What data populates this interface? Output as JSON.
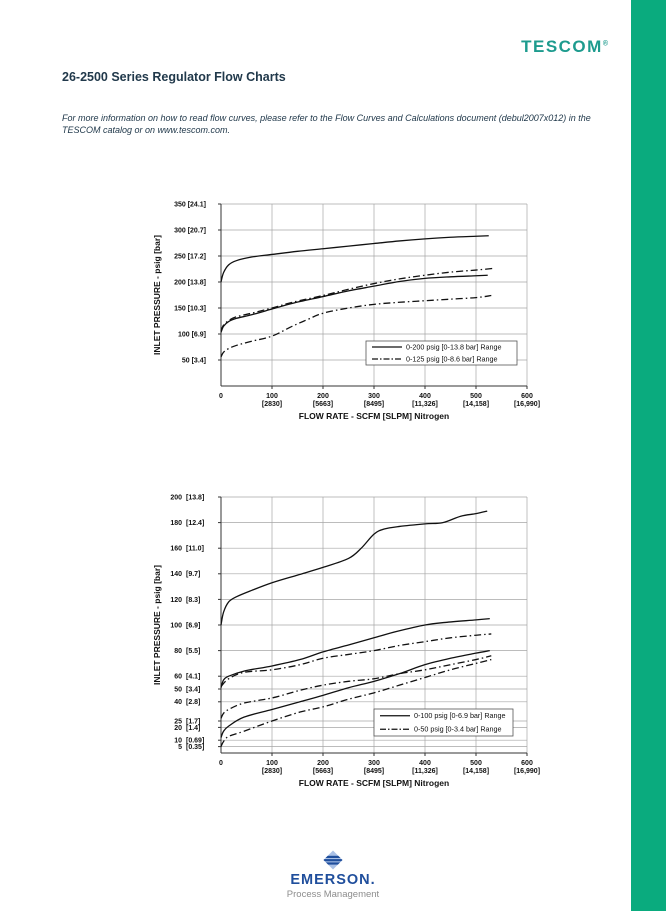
{
  "page": {
    "brand": "TESCOM",
    "brand_mark": "®",
    "title": "26-2500 Series Regulator Flow Charts",
    "note_line1": "For more information on how to read flow curves, please refer to the Flow Curves and Calculations document (debul2007x012) in the",
    "note_line2": "TESCOM catalog or on www.tescom.com.",
    "footer": {
      "brand": "EMERSON.",
      "sub": "Process Management"
    },
    "colors": {
      "accent_bar": "#0aab7e",
      "brand_teal": "#1d9b8e",
      "heading_navy": "#21394b",
      "emerson_blue": "#1f4e9c",
      "emerson_gray": "#8d8d8d",
      "chart_ink": "#111111",
      "grid_gray": "#a6a6a6"
    }
  },
  "chart_data": [
    {
      "type": "line",
      "title": "",
      "xlabel": "FLOW RATE - SCFM [SLPM] Nitrogen",
      "ylabel": "INLET PRESSURE - psig [bar]",
      "x_range": [
        0,
        600
      ],
      "y_range": [
        0,
        350
      ],
      "grid": true,
      "legend_position": "lower-right",
      "x_ticks": [
        {
          "v": 0,
          "l1": "0",
          "l2": ""
        },
        {
          "v": 100,
          "l1": "100",
          "l2": "[2830]"
        },
        {
          "v": 200,
          "l1": "200",
          "l2": "[5663]"
        },
        {
          "v": 300,
          "l1": "300",
          "l2": "[8495]"
        },
        {
          "v": 400,
          "l1": "400",
          "l2": "[11,326]"
        },
        {
          "v": 500,
          "l1": "500",
          "l2": "[14,158]"
        },
        {
          "v": 600,
          "l1": "600",
          "l2": "[16,990]"
        }
      ],
      "y_ticks": [
        {
          "v": 50,
          "psig": "50",
          "bar": "[3.4]"
        },
        {
          "v": 100,
          "psig": "100",
          "bar": "[6.9]"
        },
        {
          "v": 150,
          "psig": "150",
          "bar": "[10.3]"
        },
        {
          "v": 200,
          "psig": "200",
          "bar": "[13.8]"
        },
        {
          "v": 250,
          "psig": "250",
          "bar": "[17.2]"
        },
        {
          "v": 300,
          "psig": "300",
          "bar": "[20.7]"
        },
        {
          "v": 350,
          "psig": "350",
          "bar": "[24.1]"
        }
      ],
      "legend": [
        {
          "style": "solid",
          "label": "0-200 psig [0-13.8 bar] Range"
        },
        {
          "style": "dashdot",
          "label": "0-125 psig [0-8.6 bar] Range"
        }
      ],
      "series": [
        {
          "name": "0-200 psig range, upper curve",
          "style": "solid",
          "points": [
            [
              0,
              200
            ],
            [
              5,
              218
            ],
            [
              15,
              233
            ],
            [
              30,
              241
            ],
            [
              60,
              248
            ],
            [
              100,
              253
            ],
            [
              150,
              259
            ],
            [
              200,
              264
            ],
            [
              250,
              269
            ],
            [
              300,
              274
            ],
            [
              350,
              279
            ],
            [
              400,
              283
            ],
            [
              450,
              286
            ],
            [
              500,
              288
            ],
            [
              525,
              289
            ]
          ]
        },
        {
          "name": "0-200 psig range, lower curve",
          "style": "solid",
          "points": [
            [
              0,
              103
            ],
            [
              5,
              115
            ],
            [
              15,
              124
            ],
            [
              30,
              130
            ],
            [
              60,
              137
            ],
            [
              100,
              148
            ],
            [
              140,
              159
            ],
            [
              200,
              172
            ],
            [
              250,
              183
            ],
            [
              300,
              192
            ],
            [
              350,
              201
            ],
            [
              400,
              207
            ],
            [
              450,
              210
            ],
            [
              500,
              212
            ],
            [
              523,
              213
            ]
          ]
        },
        {
          "name": "0-125 psig range, upper curve",
          "style": "dashdot",
          "points": [
            [
              0,
              106
            ],
            [
              5,
              117
            ],
            [
              15,
              126
            ],
            [
              30,
              133
            ],
            [
              60,
              140
            ],
            [
              100,
              150
            ],
            [
              140,
              161
            ],
            [
              200,
              174
            ],
            [
              250,
              186
            ],
            [
              300,
              197
            ],
            [
              350,
              206
            ],
            [
              400,
              213
            ],
            [
              450,
              219
            ],
            [
              500,
              223
            ],
            [
              533,
              226
            ]
          ]
        },
        {
          "name": "0-125 psig range, lower curve",
          "style": "dashdot",
          "points": [
            [
              0,
              56
            ],
            [
              5,
              65
            ],
            [
              15,
              72
            ],
            [
              30,
              78
            ],
            [
              60,
              86
            ],
            [
              100,
              96
            ],
            [
              140,
              115
            ],
            [
              170,
              128
            ],
            [
              200,
              140
            ],
            [
              250,
              150
            ],
            [
              300,
              157
            ],
            [
              350,
              161
            ],
            [
              400,
              164
            ],
            [
              450,
              167
            ],
            [
              500,
              170
            ],
            [
              530,
              174
            ]
          ]
        }
      ]
    },
    {
      "type": "line",
      "title": "",
      "xlabel": "FLOW RATE - SCFM [SLPM] Nitrogen",
      "ylabel": "INLET PRESSURE - psig [bar]",
      "x_range": [
        0,
        600
      ],
      "y_range": [
        0,
        200
      ],
      "grid": true,
      "legend_position": "lower-right",
      "x_ticks": [
        {
          "v": 0,
          "l1": "0",
          "l2": ""
        },
        {
          "v": 100,
          "l1": "100",
          "l2": "[2830]"
        },
        {
          "v": 200,
          "l1": "200",
          "l2": "[5663]"
        },
        {
          "v": 300,
          "l1": "300",
          "l2": "[8495]"
        },
        {
          "v": 400,
          "l1": "400",
          "l2": "[11,326]"
        },
        {
          "v": 500,
          "l1": "500",
          "l2": "[14,158]"
        },
        {
          "v": 600,
          "l1": "600",
          "l2": "[16,990]"
        }
      ],
      "y_ticks": [
        {
          "v": 5,
          "psig": "5",
          "bar": "[0.35]"
        },
        {
          "v": 10,
          "psig": "10",
          "bar": "[0.69]"
        },
        {
          "v": 20,
          "psig": "20",
          "bar": "[1.4]"
        },
        {
          "v": 25,
          "psig": "25",
          "bar": "[1.7]"
        },
        {
          "v": 40,
          "psig": "40",
          "bar": "[2.8]"
        },
        {
          "v": 50,
          "psig": "50",
          "bar": "[3.4]"
        },
        {
          "v": 60,
          "psig": "60",
          "bar": "[4.1]"
        },
        {
          "v": 80,
          "psig": "80",
          "bar": "[5.5]"
        },
        {
          "v": 100,
          "psig": "100",
          "bar": "[6.9]"
        },
        {
          "v": 120,
          "psig": "120",
          "bar": "[8.3]"
        },
        {
          "v": 140,
          "psig": "140",
          "bar": "[9.7]"
        },
        {
          "v": 160,
          "psig": "160",
          "bar": "[11.0]"
        },
        {
          "v": 180,
          "psig": "180",
          "bar": "[12.4]"
        },
        {
          "v": 200,
          "psig": "200",
          "bar": "[13.8]"
        }
      ],
      "legend": [
        {
          "style": "solid",
          "label": "0-100 psig [0-6.9 bar] Range"
        },
        {
          "style": "dashdot",
          "label": "0-50 psig [0-3.4 bar] Range"
        }
      ],
      "series": [
        {
          "name": "0-100 psig range, upper curve",
          "style": "solid",
          "points": [
            [
              0,
              100
            ],
            [
              5,
              110
            ],
            [
              15,
              118
            ],
            [
              30,
              122
            ],
            [
              60,
              127
            ],
            [
              100,
              133
            ],
            [
              150,
              139
            ],
            [
              200,
              145
            ],
            [
              250,
              152
            ],
            [
              275,
              160
            ],
            [
              300,
              171
            ],
            [
              320,
              175
            ],
            [
              350,
              177
            ],
            [
              400,
              179
            ],
            [
              435,
              180
            ],
            [
              470,
              185
            ],
            [
              500,
              187
            ],
            [
              522,
              189
            ]
          ]
        },
        {
          "name": "0-100 psig range, middle curve",
          "style": "solid",
          "points": [
            [
              0,
              51
            ],
            [
              5,
              57
            ],
            [
              15,
              60
            ],
            [
              45,
              64
            ],
            [
              100,
              68
            ],
            [
              155,
              73
            ],
            [
              200,
              79
            ],
            [
              255,
              85
            ],
            [
              300,
              90
            ],
            [
              345,
              95
            ],
            [
              400,
              100
            ],
            [
              440,
              102
            ],
            [
              500,
              104
            ],
            [
              527,
              105
            ]
          ]
        },
        {
          "name": "0-100 psig range, lower curve",
          "style": "solid",
          "points": [
            [
              0,
              12
            ],
            [
              5,
              17
            ],
            [
              15,
              21
            ],
            [
              45,
              28
            ],
            [
              100,
              34
            ],
            [
              155,
              40
            ],
            [
              200,
              45
            ],
            [
              250,
              51
            ],
            [
              300,
              56
            ],
            [
              350,
              62
            ],
            [
              400,
              69
            ],
            [
              450,
              74
            ],
            [
              500,
              78
            ],
            [
              527,
              80
            ]
          ]
        },
        {
          "name": "0-50 psig range, upper curve",
          "style": "dashdot",
          "points": [
            [
              0,
              52
            ],
            [
              15,
              58
            ],
            [
              45,
              63
            ],
            [
              100,
              65
            ],
            [
              155,
              69
            ],
            [
              200,
              74
            ],
            [
              250,
              77
            ],
            [
              300,
              80
            ],
            [
              350,
              84
            ],
            [
              400,
              87
            ],
            [
              450,
              90
            ],
            [
              500,
              92
            ],
            [
              530,
              93
            ]
          ]
        },
        {
          "name": "0-50 psig range, middle curve",
          "style": "dashdot",
          "points": [
            [
              0,
              27
            ],
            [
              5,
              31
            ],
            [
              15,
              34
            ],
            [
              45,
              39
            ],
            [
              100,
              43
            ],
            [
              155,
              49
            ],
            [
              200,
              53
            ],
            [
              250,
              56
            ],
            [
              300,
              58
            ],
            [
              350,
              62
            ],
            [
              400,
              65
            ],
            [
              450,
              69
            ],
            [
              500,
              73
            ],
            [
              530,
              76
            ]
          ]
        },
        {
          "name": "0-50 psig range, lower curve",
          "style": "dashdot",
          "points": [
            [
              0,
              5
            ],
            [
              5,
              9
            ],
            [
              15,
              13
            ],
            [
              45,
              17
            ],
            [
              100,
              25
            ],
            [
              155,
              32
            ],
            [
              200,
              36
            ],
            [
              250,
              42
            ],
            [
              300,
              47
            ],
            [
              350,
              53
            ],
            [
              400,
              59
            ],
            [
              450,
              65
            ],
            [
              500,
              70
            ],
            [
              530,
              73
            ]
          ]
        }
      ]
    }
  ]
}
